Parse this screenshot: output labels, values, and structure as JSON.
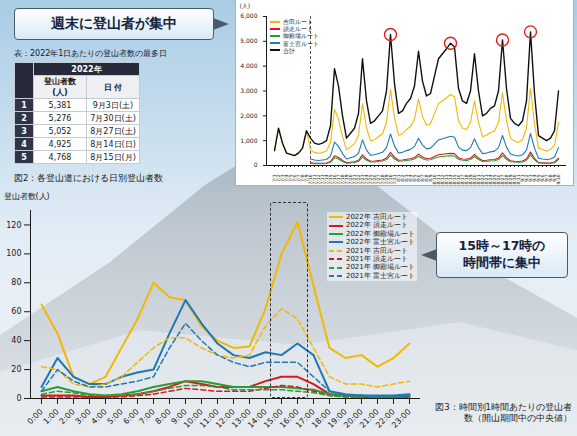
{
  "chart_data": [
    {
      "type": "line",
      "caption": "図2：各登山道における日別登山者数",
      "annotations": [
        "週末に登山者が集中"
      ],
      "y_label": "(人)",
      "x": [
        "7/1",
        "7/2",
        "7/3",
        "7/4",
        "7/5",
        "7/6",
        "7/7",
        "7/8",
        "7/9",
        "7/10",
        "7/11",
        "7/12",
        "7/13",
        "7/14",
        "7/15",
        "7/16",
        "7/17",
        "7/18",
        "7/19",
        "7/20",
        "7/21",
        "7/22",
        "7/23",
        "7/24",
        "7/25",
        "7/26",
        "7/27",
        "7/28",
        "7/29",
        "7/30",
        "7/31",
        "8/1",
        "8/2",
        "8/3",
        "8/4",
        "8/5",
        "8/6",
        "8/7",
        "8/8",
        "8/9",
        "8/10",
        "8/11",
        "8/12",
        "8/13",
        "8/14",
        "8/15",
        "8/16",
        "8/17",
        "8/18",
        "8/19",
        "8/20",
        "8/21",
        "8/22",
        "8/23",
        "8/24",
        "8/25",
        "8/26",
        "8/27",
        "8/28",
        "8/29",
        "8/30",
        "8/31",
        "9/1",
        "9/2",
        "9/3",
        "9/4",
        "9/5",
        "9/6",
        "9/7",
        "9/8",
        "9/9",
        "9/10"
      ],
      "series": [
        {
          "name": "吉田ルート",
          "color": "#f2b800",
          "values": [
            600,
            1500,
            900,
            500,
            450,
            400,
            500,
            700,
            1400,
            640,
            520,
            490,
            520,
            580,
            930,
            2260,
            1860,
            1160,
            640,
            750,
            870,
            1220,
            2490,
            1510,
            990,
            1040,
            1160,
            1280,
            1740,
            3060,
            1910,
            1220,
            1280,
            1450,
            1570,
            1860,
            2670,
            1970,
            1620,
            1680,
            2090,
            2490,
            2610,
            2730,
            2860,
            2770,
            1800,
            1510,
            1450,
            1740,
            2610,
            1740,
            1160,
            1220,
            1330,
            1390,
            1740,
            2930,
            1800,
            1100,
            990,
            930,
            1040,
            1510,
            3120,
            1680,
            700,
            640,
            580,
            640,
            810,
            1740
          ]
        },
        {
          "name": "須走ルート",
          "color": "#d7191c",
          "values": [
            null,
            null,
            null,
            null,
            null,
            null,
            null,
            null,
            null,
            110,
            90,
            90,
            90,
            100,
            160,
            390,
            320,
            200,
            110,
            130,
            150,
            210,
            430,
            260,
            170,
            180,
            200,
            220,
            300,
            530,
            330,
            210,
            220,
            250,
            270,
            320,
            460,
            340,
            280,
            290,
            360,
            430,
            450,
            470,
            490,
            480,
            310,
            260,
            250,
            300,
            450,
            300,
            200,
            210,
            230,
            240,
            300,
            510,
            310,
            190,
            170,
            160,
            180,
            260,
            540,
            290,
            120,
            110,
            100,
            110,
            140,
            300
          ]
        },
        {
          "name": "御殿場ルート",
          "color": "#2a9d3a",
          "values": [
            null,
            null,
            null,
            null,
            null,
            null,
            null,
            null,
            null,
            90,
            70,
            70,
            70,
            80,
            130,
            310,
            260,
            160,
            90,
            100,
            120,
            170,
            340,
            210,
            140,
            140,
            160,
            180,
            240,
            420,
            260,
            170,
            180,
            200,
            220,
            260,
            370,
            270,
            220,
            230,
            290,
            340,
            360,
            380,
            390,
            380,
            250,
            210,
            200,
            240,
            360,
            240,
            160,
            170,
            180,
            190,
            240,
            400,
            250,
            150,
            140,
            130,
            140,
            210,
            430,
            230,
            100,
            90,
            80,
            90,
            110,
            240
          ]
        },
        {
          "name": "富士宮ルート",
          "color": "#1f77b4",
          "values": [
            null,
            null,
            null,
            null,
            null,
            null,
            null,
            null,
            null,
            260,
            220,
            200,
            220,
            240,
            380,
            940,
            770,
            480,
            260,
            310,
            360,
            500,
            1030,
            620,
            410,
            430,
            480,
            530,
            720,
            1270,
            790,
            500,
            530,
            600,
            650,
            770,
            1100,
            820,
            670,
            700,
            860,
            1030,
            1080,
            1130,
            1180,
            1140,
            740,
            620,
            600,
            720,
            1080,
            720,
            480,
            500,
            550,
            580,
            720,
            1210,
            740,
            460,
            410,
            380,
            430,
            620,
            1290,
            700,
            290,
            260,
            240,
            260,
            340,
            720
          ]
        },
        {
          "name": "合計",
          "color": "#111111",
          "values": [
            600,
            1500,
            900,
            500,
            450,
            400,
            500,
            700,
            1400,
            1100,
            900,
            850,
            900,
            1000,
            1600,
            3900,
            3200,
            2000,
            1100,
            1300,
            1500,
            2100,
            4300,
            2600,
            1700,
            1800,
            2000,
            2200,
            3000,
            5276,
            3300,
            2100,
            2200,
            2500,
            2700,
            3200,
            4600,
            3400,
            2800,
            2900,
            3600,
            4300,
            4500,
            4700,
            4925,
            4768,
            3100,
            2600,
            2500,
            3000,
            4500,
            3000,
            2000,
            2100,
            2300,
            2400,
            3000,
            5052,
            3100,
            1900,
            1700,
            1600,
            1800,
            2600,
            5381,
            2900,
            1200,
            1100,
            1000,
            1100,
            1400,
            3000
          ]
        }
      ],
      "ylim": [
        0,
        6000
      ],
      "yticks": [
        0,
        {
          "value": 1000,
          "label": "1,000"
        },
        {
          "value": 2000,
          "label": "2,000"
        },
        {
          "value": 3000,
          "label": "3,000"
        },
        {
          "value": 4000,
          "label": "4,000"
        },
        {
          "value": 5000,
          "label": "5,000"
        },
        {
          "value": 6000,
          "label": "6,000"
        }
      ],
      "grid": false,
      "legend": "top-left"
    },
    {
      "type": "line",
      "caption": "図3：時間別1時間あたりの登山者数（開山期間中の中央値）",
      "annotations": [
        "15時～17時の時間帯に集中"
      ],
      "y_label": "登山者数(人)",
      "x": [
        "0:00",
        "1:00",
        "2:00",
        "3:00",
        "4:00",
        "5:00",
        "6:00",
        "7:00",
        "8:00",
        "9:00",
        "10:00",
        "11:00",
        "12:00",
        "13:00",
        "14:00",
        "15:00",
        "16:00",
        "17:00",
        "18:00",
        "19:00",
        "20:00",
        "21:00",
        "22:00",
        "23:00"
      ],
      "series": [
        {
          "name": "2022年 吉田ルート",
          "color": "#f2b800",
          "line_style": "solid",
          "values": [
            65,
            45,
            15,
            10,
            15,
            35,
            55,
            80,
            70,
            68,
            50,
            40,
            35,
            36,
            62,
            100,
            122,
            78,
            35,
            28,
            30,
            22,
            28,
            38
          ]
        },
        {
          "name": "2022年 須走ルート",
          "color": "#d7191c",
          "line_style": "solid",
          "values": [
            2,
            2,
            2,
            1,
            1,
            2,
            3,
            5,
            8,
            12,
            10,
            8,
            8,
            8,
            12,
            15,
            15,
            10,
            3,
            2,
            1,
            1,
            1,
            1
          ]
        },
        {
          "name": "2022年 御殿場ルート",
          "color": "#2a9d3a",
          "line_style": "solid",
          "values": [
            5,
            8,
            5,
            3,
            2,
            3,
            5,
            8,
            10,
            12,
            12,
            10,
            8,
            8,
            8,
            8,
            7,
            6,
            3,
            2,
            2,
            1,
            1,
            2
          ]
        },
        {
          "name": "2022年 富士宮ルート",
          "color": "#1f77b4",
          "line_style": "solid",
          "values": [
            8,
            28,
            15,
            10,
            10,
            15,
            18,
            20,
            45,
            68,
            52,
            38,
            30,
            28,
            32,
            30,
            38,
            30,
            5,
            3,
            2,
            2,
            2,
            3
          ]
        },
        {
          "name": "2021年 吉田ルート",
          "color": "#f2b800",
          "line_style": "dashed",
          "values": [
            22,
            20,
            10,
            8,
            10,
            15,
            25,
            35,
            42,
            42,
            35,
            30,
            28,
            30,
            50,
            62,
            55,
            35,
            15,
            10,
            10,
            8,
            10,
            12
          ]
        },
        {
          "name": "2021年 須走ルート",
          "color": "#d7191c",
          "line_style": "dashed",
          "values": [
            1,
            1,
            1,
            1,
            1,
            1,
            2,
            3,
            5,
            7,
            6,
            5,
            5,
            5,
            7,
            9,
            8,
            5,
            2,
            1,
            1,
            0,
            0,
            1
          ]
        },
        {
          "name": "2021年 御殿場ルート",
          "color": "#2a9d3a",
          "line_style": "dashed",
          "values": [
            3,
            5,
            4,
            2,
            2,
            2,
            3,
            5,
            7,
            9,
            9,
            8,
            6,
            6,
            6,
            6,
            5,
            4,
            2,
            1,
            1,
            1,
            1,
            1
          ]
        },
        {
          "name": "2021年 富士宮ルート",
          "color": "#1f77b4",
          "line_style": "dashed",
          "values": [
            5,
            20,
            12,
            8,
            8,
            10,
            12,
            15,
            35,
            52,
            40,
            30,
            25,
            22,
            25,
            25,
            25,
            15,
            5,
            2,
            2,
            1,
            1,
            2
          ]
        }
      ],
      "ylim": [
        0,
        130
      ],
      "yticks": [
        0,
        20,
        40,
        60,
        80,
        100,
        120
      ],
      "grid": false,
      "legend": "top-right"
    }
  ],
  "table": {
    "title": "表：2022年1日あたりの登山者数の最多日",
    "header": "2022年",
    "columns": [
      "登山者数(人)",
      "日 付"
    ],
    "rows": [
      [
        "1",
        "5,381",
        "9月3日(土)"
      ],
      [
        "2",
        "5,276",
        "7月30日(土)"
      ],
      [
        "3",
        "5,052",
        "8月27日(土)"
      ],
      [
        "4",
        "4,925",
        "8月14日(日)"
      ],
      [
        "5",
        "4,768",
        "8月15日(月)"
      ]
    ]
  }
}
